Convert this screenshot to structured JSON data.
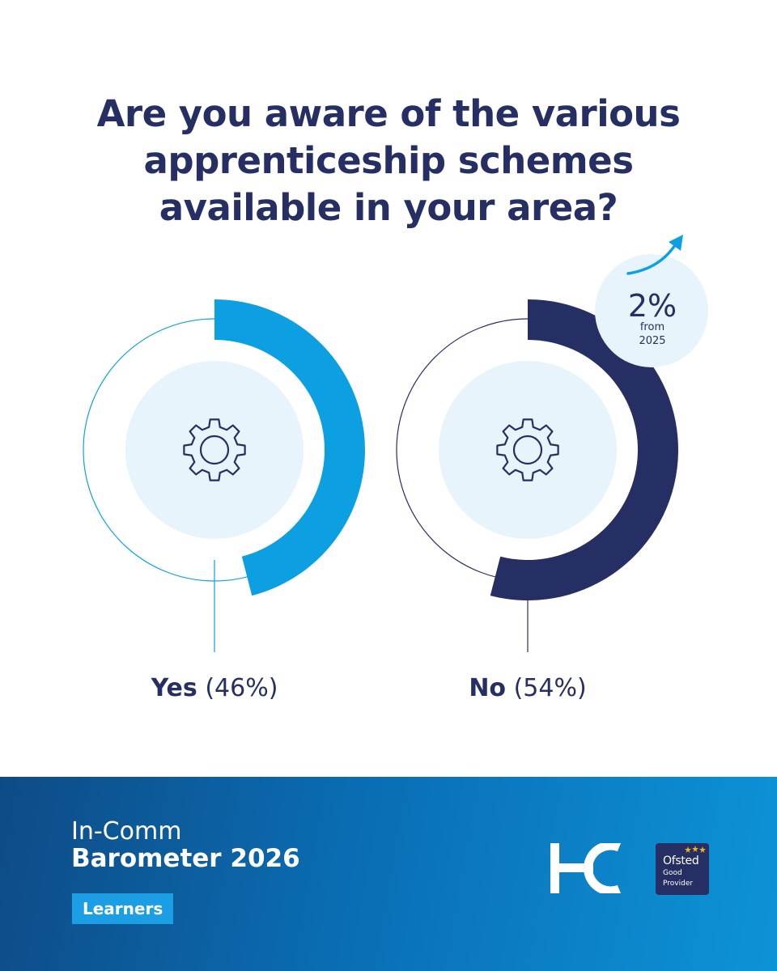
{
  "chart_data": {
    "type": "donut",
    "title_lines": [
      "Are you aware of the various",
      "apprenticeship schemes",
      "available in your area?"
    ],
    "series": [
      {
        "category": "Yes",
        "value": 46,
        "value_label": "(46%)",
        "color": "#0ca0e3"
      },
      {
        "category": "No",
        "value": 54,
        "value_label": "(54%)",
        "color": "#262f63"
      }
    ],
    "change_badge": {
      "value": "2%",
      "line1": "from",
      "line2": "2025",
      "direction": "up"
    }
  },
  "icons": {
    "center": "gear-icon",
    "badge": "arrow-up-right-icon"
  },
  "colors": {
    "navy": "#262f63",
    "blue": "#0ca0e3",
    "pale_blue": "#e8f4fc"
  },
  "footer": {
    "brand_light": "In-Comm",
    "brand_bold": "Barometer 2026",
    "tag": "Learners",
    "logo": "IC",
    "ofsted": {
      "name": "Ofsted",
      "rating_line1": "Good",
      "rating_line2": "Provider"
    }
  }
}
